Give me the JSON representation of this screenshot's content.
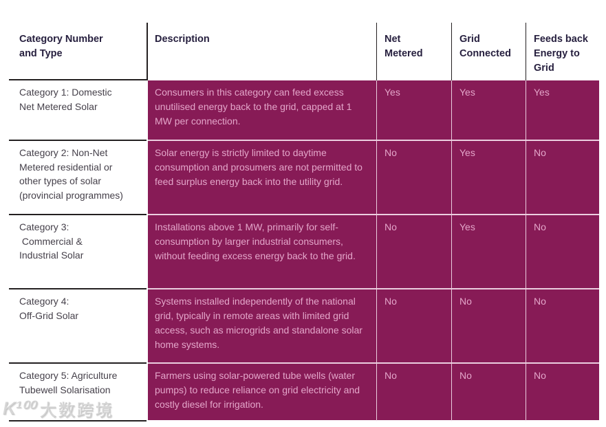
{
  "colors": {
    "accent_magenta": "#871b56",
    "cell_text_pink": "#e4a6ca",
    "header_text_dark": "#27203f",
    "category_text": "#45404a",
    "divider_dark": "#231f20",
    "divider_pink": "#eccfe0"
  },
  "watermark": {
    "logo": "K¹⁰⁰",
    "text": "大数跨境"
  },
  "table": {
    "columns": {
      "category": "Category Number\nand Type",
      "description": "Description",
      "net_metered": "Net\nMetered",
      "grid_connected": "Grid\nConnected",
      "feeds_back": "Feeds back\nEnergy to\nGrid"
    },
    "rows": [
      {
        "category": "Category 1: Domestic\nNet Metered Solar",
        "description": "Consumers in this category can feed excess unutilised energy back to the grid, capped at 1 MW per connection.",
        "net_metered": "Yes",
        "grid_connected": "Yes",
        "feeds_back": "Yes"
      },
      {
        "category": "Category 2: Non-Net\nMetered residential or\nother types of solar\n(provincial programmes)",
        "description": "Solar energy is strictly limited to daytime consumption and prosumers are not permitted to feed surplus energy back into the utility grid.",
        "net_metered": "No",
        "grid_connected": "Yes",
        "feeds_back": "No"
      },
      {
        "category": "Category 3:\n Commercial &\nIndustrial Solar",
        "description": "Installations above 1 MW, primarily for self-consumption by larger industrial consumers, without feeding excess energy back to the grid.",
        "net_metered": "No",
        "grid_connected": "Yes",
        "feeds_back": "No"
      },
      {
        "category": "Category 4:\nOff-Grid Solar",
        "description": "Systems installed independently of the national grid, typically in remote areas with limited grid access, such as microgrids and standalone solar home systems.",
        "net_metered": "No",
        "grid_connected": "No",
        "feeds_back": "No"
      },
      {
        "category": "Category 5: Agriculture\nTubewell Solarisation",
        "description": "Farmers using solar-powered tube wells (water pumps) to reduce reliance on grid electricity and costly diesel for irrigation.",
        "net_metered": "No",
        "grid_connected": "No",
        "feeds_back": "No"
      }
    ]
  }
}
